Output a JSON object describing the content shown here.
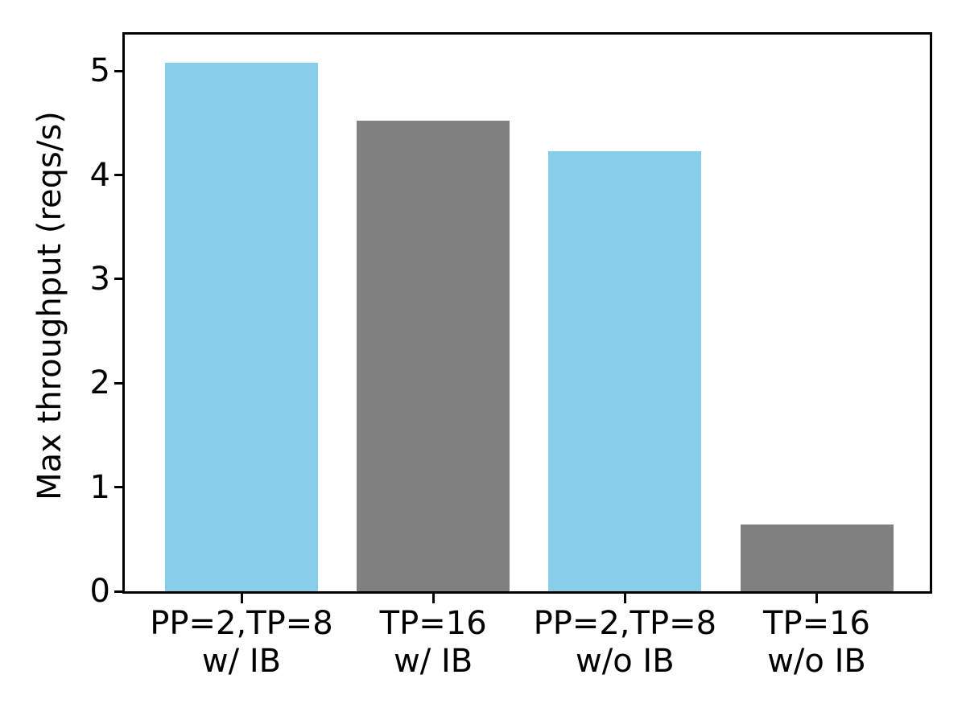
{
  "chart_data": {
    "type": "bar",
    "title": "",
    "xlabel": "",
    "ylabel": "Max throughput (reqs/s)",
    "categories": [
      "PP=2,TP=8\nw/ IB",
      "TP=16\nw/ IB",
      "PP=2,TP=8\nw/o IB",
      "TP=16\nw/o IB"
    ],
    "values": [
      5.08,
      4.52,
      4.23,
      0.64
    ],
    "bar_colors": [
      "#87CEEB",
      "#808080",
      "#87CEEB",
      "#808080"
    ],
    "yticks": [
      0,
      1,
      2,
      3,
      4,
      5
    ],
    "ylim": [
      0,
      5.35
    ],
    "grid": false,
    "legend": null
  },
  "colors": {
    "skyblue": "#87CEEB",
    "gray": "#808080",
    "axis": "#000000",
    "background": "#FFFFFF",
    "text": "#000000"
  }
}
